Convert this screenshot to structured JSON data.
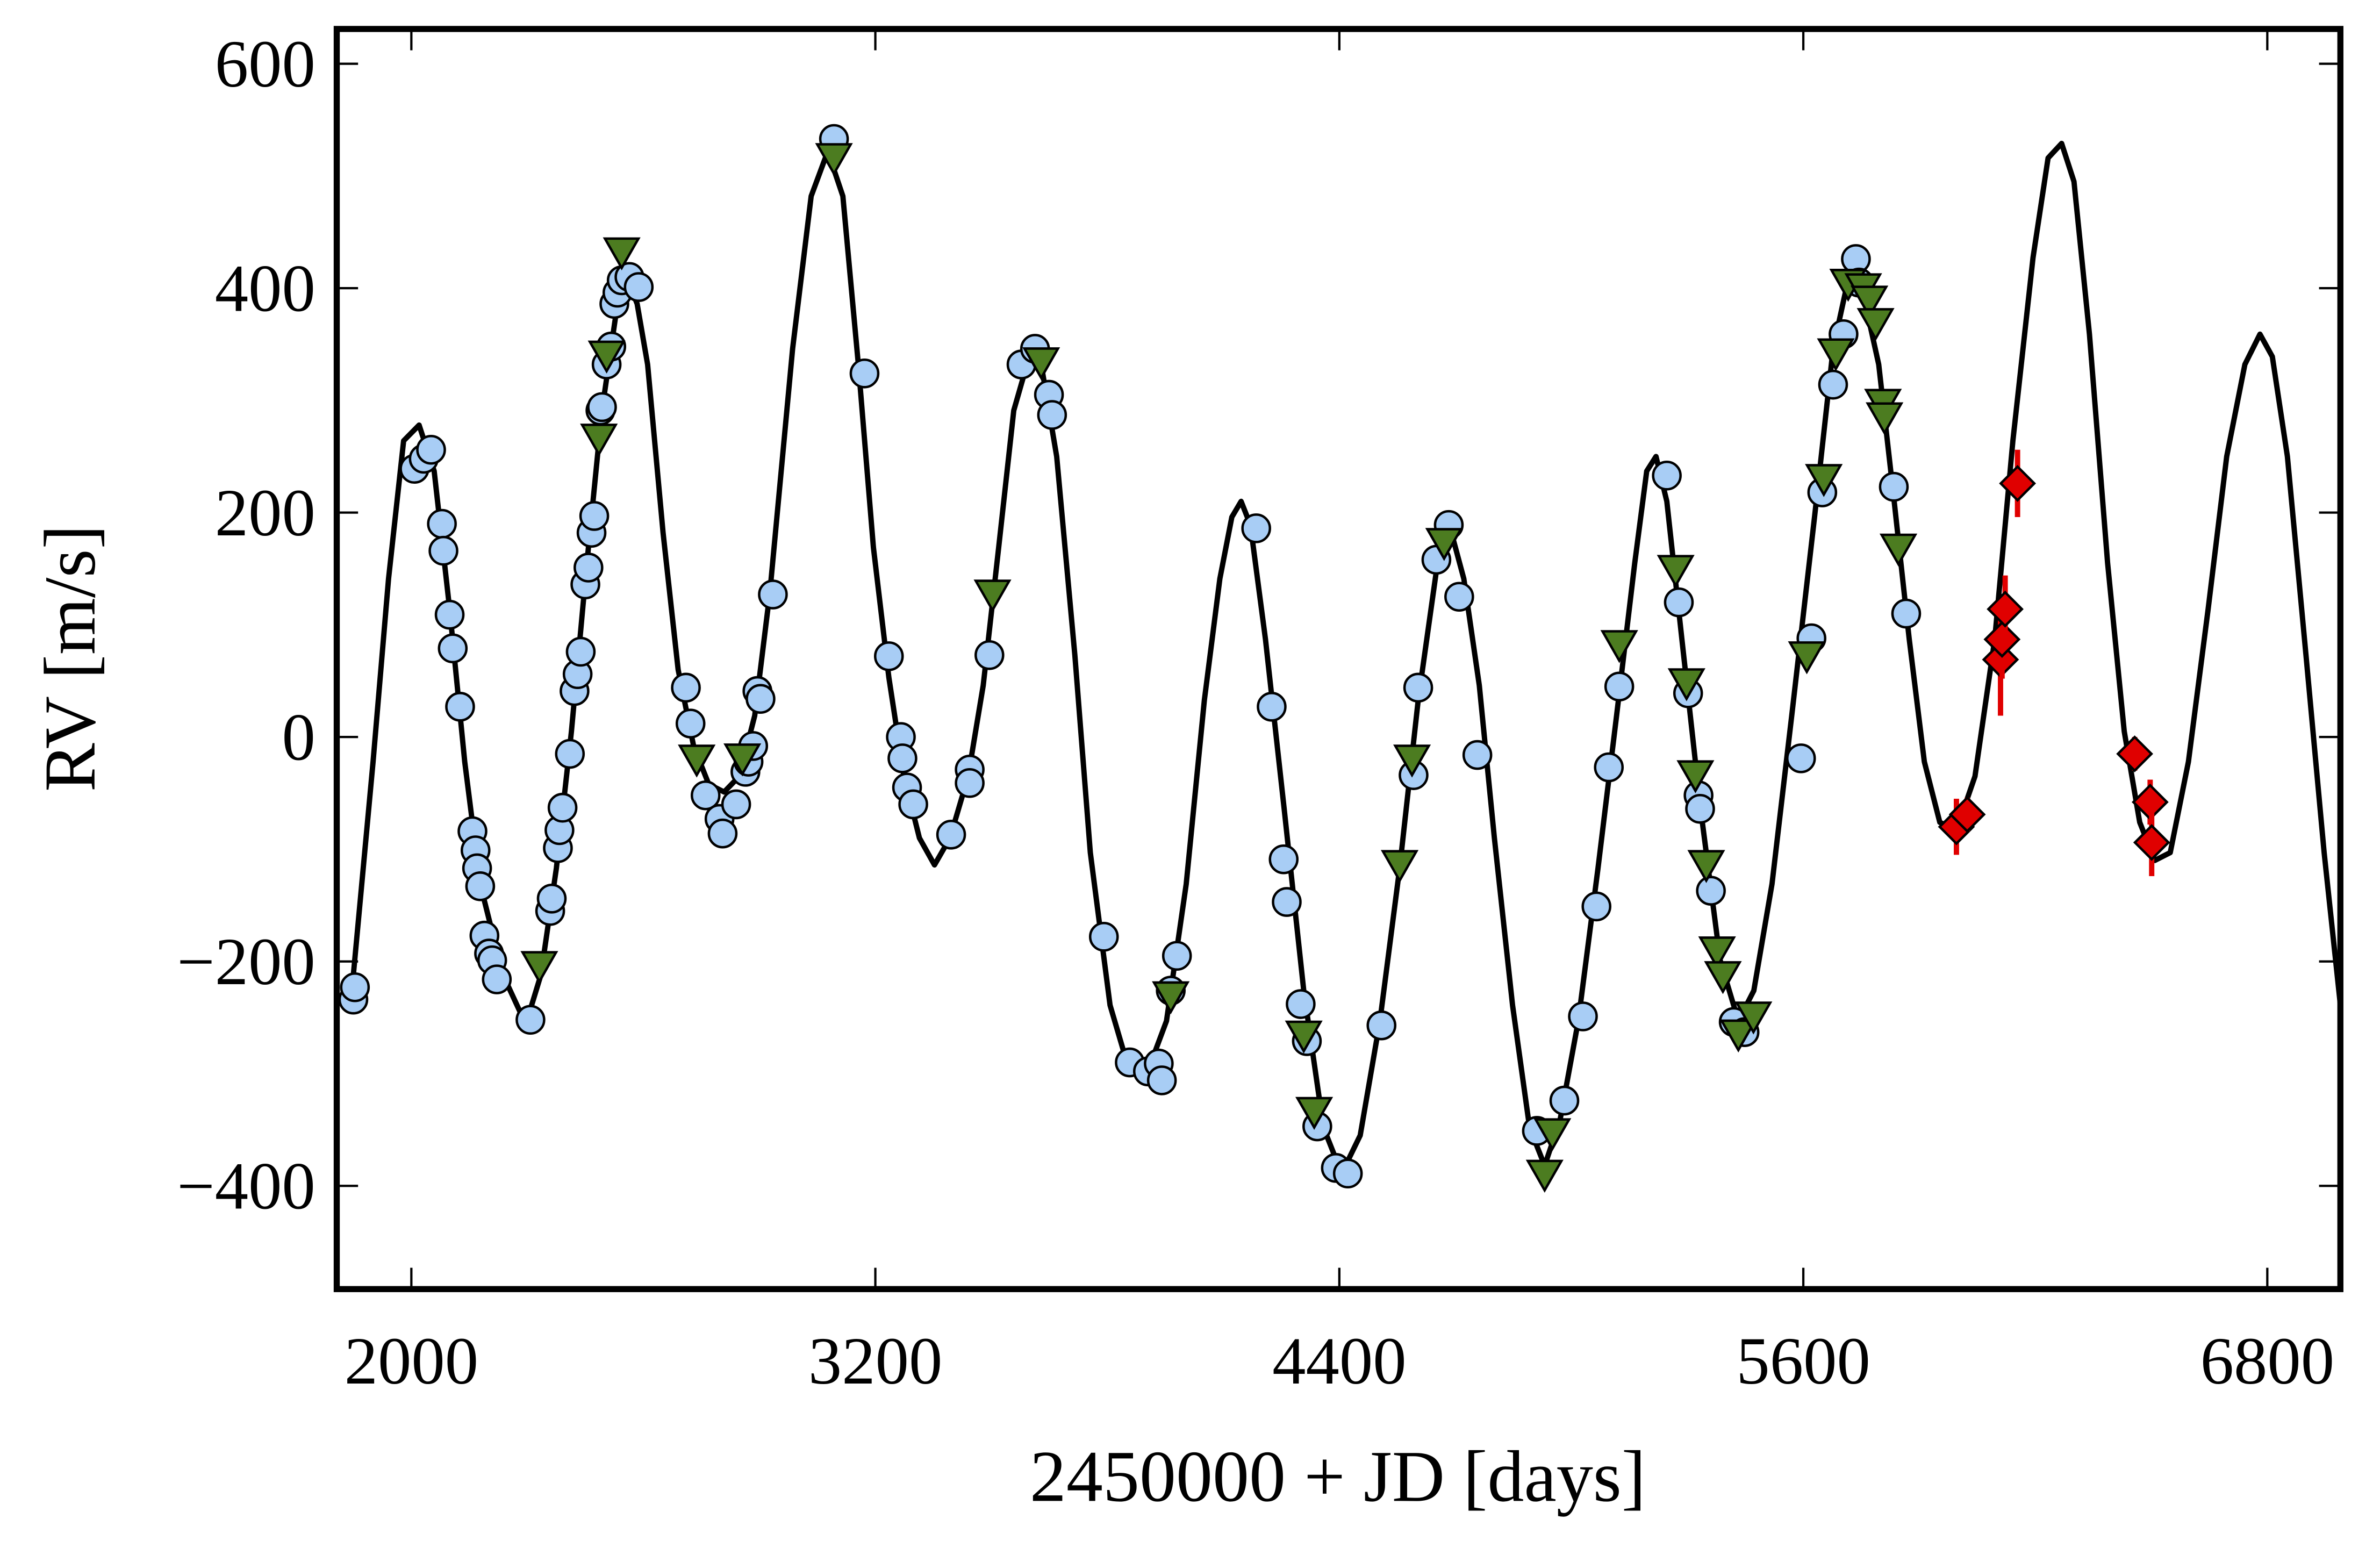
{
  "chart_data": {
    "type": "scatter",
    "xlabel": "2450000 + JD [days]",
    "ylabel": "RV [m/s]",
    "xlim": [
      1807,
      6989
    ],
    "ylim": [
      -492,
      631
    ],
    "xticks": [
      2000,
      3200,
      4400,
      5600,
      6800
    ],
    "yticks": [
      {
        "value": -400,
        "label": "−400"
      },
      {
        "value": -200,
        "label": "−200"
      },
      0,
      200,
      400,
      600
    ],
    "series": [
      {
        "style": "line",
        "color": "#000000",
        "x": [
          1807,
          1850,
          1901,
          1941,
          1980,
          2020,
          2059,
          2099,
          2138,
          2178,
          2237,
          2296,
          2335,
          2375,
          2414,
          2454,
          2493,
          2533,
          2560,
          2584,
          2611,
          2651,
          2690,
          2730,
          2769,
          2809,
          2848,
          2888,
          2927,
          2986,
          3034,
          3077,
          3116,
          3156,
          3195,
          3235,
          3274,
          3314,
          3353,
          3393,
          3440,
          3479,
          3519,
          3558,
          3598,
          3629,
          3669,
          3716,
          3756,
          3807,
          3854,
          3901,
          3953,
          4004,
          4051,
          4091,
          4122,
          4146,
          4170,
          4209,
          4257,
          4308,
          4359,
          4406,
          4454,
          4505,
          4556,
          4604,
          4651,
          4690,
          4722,
          4762,
          4801,
          4848,
          4892,
          4931,
          4971,
          5018,
          5069,
          5117,
          5164,
          5195,
          5219,
          5247,
          5286,
          5334,
          5385,
          5432,
          5472,
          5519,
          5570,
          5629,
          5677,
          5720,
          5756,
          5795,
          5835,
          5874,
          5913,
          5953,
          5996,
          6044,
          6095,
          6142,
          6194,
          6233,
          6268,
          6300,
          6340,
          6387,
          6430,
          6470,
          6509,
          6549,
          6596,
          6647,
          6695,
          6742,
          6781,
          6813,
          6852,
          6900,
          6947,
          6989
        ],
        "values": [
          -239,
          -212,
          -22,
          141,
          264,
          278,
          237,
          114,
          -22,
          -131,
          -212,
          -256,
          -212,
          -117,
          5,
          155,
          291,
          386,
          407,
          386,
          332,
          182,
          60,
          -8,
          -42,
          -49,
          -35,
          19,
          128,
          346,
          482,
          522,
          482,
          332,
          169,
          53,
          -35,
          -90,
          -114,
          -90,
          -35,
          46,
          169,
          291,
          339,
          332,
          250,
          73,
          -103,
          -239,
          -294,
          -301,
          -253,
          -131,
          33,
          141,
          196,
          210,
          189,
          87,
          -63,
          -226,
          -348,
          -389,
          -355,
          -253,
          -117,
          33,
          148,
          182,
          141,
          46,
          -90,
          -239,
          -348,
          -382,
          -341,
          -253,
          -117,
          19,
          155,
          237,
          250,
          210,
          87,
          -63,
          -199,
          -253,
          -226,
          -131,
          19,
          196,
          346,
          414,
          393,
          332,
          210,
          87,
          -22,
          -76,
          -83,
          -35,
          87,
          264,
          427,
          516,
          529,
          495,
          359,
          155,
          5,
          -76,
          -110,
          -103,
          -22,
          114,
          250,
          332,
          359,
          339,
          250,
          73,
          -103,
          -239
        ]
      },
      {
        "style": "circle",
        "color": "#a8cdf5",
        "x": [
          1850,
          1854,
          2008,
          2032,
          2051,
          2079,
          2083,
          2099,
          2107,
          2126,
          2158,
          2166,
          2170,
          2178,
          2189,
          2201,
          2209,
          2221,
          2308,
          2359,
          2363,
          2379,
          2383,
          2391,
          2410,
          2422,
          2430,
          2438,
          2450,
          2458,
          2466,
          2473,
          2489,
          2493,
          2505,
          2517,
          2525,
          2533,
          2544,
          2564,
          2588,
          2710,
          2722,
          2761,
          2797,
          2805,
          2840,
          2864,
          2872,
          2884,
          2895,
          2903,
          2935,
          3093,
          3172,
          3235,
          3266,
          3270,
          3282,
          3298,
          3396,
          3444,
          3444,
          3495,
          3578,
          3613,
          3649,
          3657,
          3791,
          3858,
          3905,
          3933,
          3941,
          3964,
          3980,
          4185,
          4225,
          4256,
          4264,
          4300,
          4316,
          4343,
          4391,
          4422,
          4509,
          4592,
          4604,
          4651,
          4683,
          4710,
          4757,
          4911,
          4982,
          5030,
          5065,
          5097,
          5124,
          5247,
          5278,
          5302,
          5329,
          5333,
          5361,
          5420,
          5448,
          5594,
          5621,
          5649,
          5677,
          5704,
          5736,
          5744,
          5834,
          5866
        ],
        "values": [
          -234,
          -223,
          239,
          248,
          256,
          190,
          166,
          109,
          79,
          27,
          -84,
          -101,
          -117,
          -133,
          -177,
          -193,
          -199,
          -216,
          -252,
          -155,
          -144,
          -99,
          -83,
          -63,
          -15,
          41,
          56,
          76,
          136,
          151,
          182,
          197,
          291,
          294,
          332,
          348,
          386,
          396,
          407,
          410,
          401,
          44,
          12,
          -52,
          -73,
          -86,
          -60,
          -31,
          -22,
          -8,
          41,
          34,
          127,
          533,
          324,
          72,
          0,
          -19,
          -45,
          -60,
          -87,
          -29,
          -41,
          73,
          332,
          346,
          305,
          287,
          -178,
          -290,
          -298,
          -291,
          -306,
          -226,
          -195,
          186,
          27,
          -109,
          -147,
          -238,
          -271,
          -347,
          -384,
          -389,
          -257,
          -34,
          44,
          158,
          189,
          125,
          -16,
          -351,
          -324,
          -249,
          -151,
          -27,
          45,
          233,
          120,
          39,
          -52,
          -64,
          -137,
          -254,
          -263,
          -19,
          88,
          218,
          314,
          359,
          426,
          405,
          223,
          110
        ]
      },
      {
        "style": "triangle",
        "color": "#4c7c20",
        "x": [
          2331,
          2485,
          2505,
          2544,
          2738,
          2856,
          3093,
          3503,
          3629,
          3964,
          4308,
          4335,
          4556,
          4588,
          4671,
          4931,
          4951,
          5124,
          5270,
          5298,
          5321,
          5349,
          5377,
          5392,
          5432,
          5471,
          5609,
          5653,
          5684,
          5716,
          5755,
          5771,
          5787,
          5806,
          5810,
          5846
        ],
        "values": [
          -203,
          267,
          341,
          433,
          -19,
          -18,
          517,
          128,
          335,
          -230,
          -265,
          -333,
          -113,
          -19,
          174,
          -389,
          -352,
          83,
          150,
          49,
          -33,
          -113,
          -190,
          -212,
          -264,
          -248,
          73,
          231,
          343,
          405,
          401,
          390,
          370,
          298,
          286,
          169
        ]
      },
      {
        "style": "diamond",
        "color": "#e00000",
        "x": [
          5996,
          6024,
          6110,
          6114,
          6122,
          6154,
          6457,
          6497,
          6501
        ],
        "values": [
          -80,
          -69,
          69,
          87,
          114,
          226,
          -15,
          -58,
          -94
        ],
        "errors": [
          25,
          15,
          50,
          35,
          30,
          30,
          15,
          20,
          30
        ]
      }
    ]
  }
}
